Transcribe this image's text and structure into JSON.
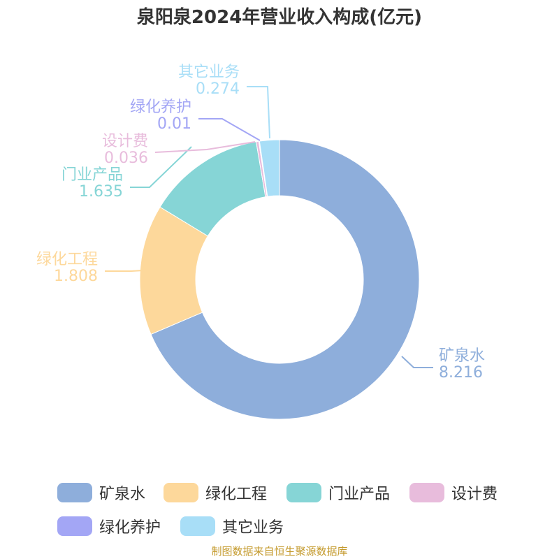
{
  "chart_data": {
    "type": "donut",
    "title": "泉阳泉2024年营业收入构成(亿元)",
    "categories": [
      "矿泉水",
      "绿化工程",
      "门业产品",
      "设计费",
      "绿化养护",
      "其它业务"
    ],
    "values": [
      8.216,
      1.808,
      1.635,
      0.036,
      0.01,
      0.274
    ],
    "value_labels": [
      "8.216",
      "1.808",
      "1.635",
      "0.036",
      "0.01",
      "0.274"
    ],
    "colors": [
      "#8eaedb",
      "#fdd89b",
      "#86d5d6",
      "#e8bcdc",
      "#a3a6f5",
      "#a8def7"
    ],
    "legend": "bottom"
  },
  "footer": {
    "source": "制图数据来自恒生聚源数据库"
  }
}
